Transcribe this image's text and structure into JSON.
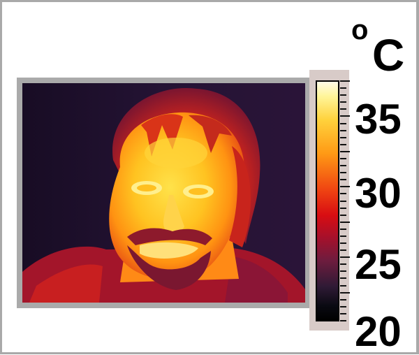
{
  "thermogram": {
    "unit_degree": "o",
    "unit_letter": "C",
    "scale_labels": [
      "35",
      "30",
      "25",
      "20"
    ],
    "scale_min": 20,
    "scale_max": 37
  }
}
